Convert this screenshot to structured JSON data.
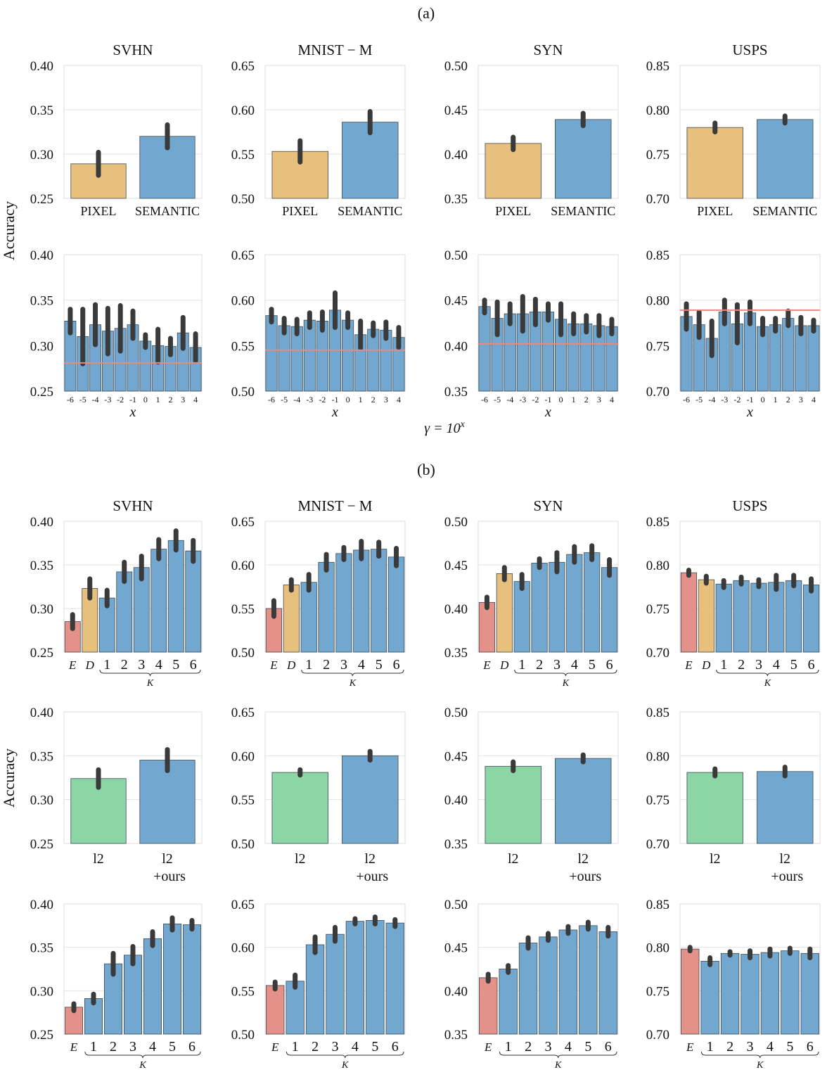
{
  "figure": {
    "label_a": "(a)",
    "label_b": "(b)",
    "ylabel": "Accuracy",
    "gamma_label_base": "γ = 10",
    "gamma_label_exp": "x",
    "colors": {
      "blue": "#72a8cf",
      "orange": "#e8c07e",
      "red": "#e4918a",
      "green": "#8cd5a5",
      "error": "#3a3a3a",
      "hline": "#e88a80"
    }
  },
  "chart_data": [
    {
      "panel": "a-top",
      "title": "SVHN",
      "type": "bar",
      "categories": [
        "PIXEL",
        "SEMANTIC"
      ],
      "values": [
        0.289,
        0.32
      ],
      "errors": [
        0.013,
        0.013
      ],
      "colors": [
        "orange",
        "blue"
      ],
      "ylim": [
        0.25,
        0.4
      ],
      "yticks": [
        "0.25",
        "0.30",
        "0.35",
        "0.40"
      ],
      "xlabel": ""
    },
    {
      "panel": "a-top",
      "title": "MNIST − M",
      "type": "bar",
      "categories": [
        "PIXEL",
        "SEMANTIC"
      ],
      "values": [
        0.553,
        0.586
      ],
      "errors": [
        0.012,
        0.012
      ],
      "colors": [
        "orange",
        "blue"
      ],
      "ylim": [
        0.5,
        0.65
      ],
      "yticks": [
        "0.50",
        "0.55",
        "0.60",
        "0.65"
      ],
      "xlabel": ""
    },
    {
      "panel": "a-top",
      "title": "SYN",
      "type": "bar",
      "categories": [
        "PIXEL",
        "SEMANTIC"
      ],
      "values": [
        0.412,
        0.439
      ],
      "errors": [
        0.007,
        0.007
      ],
      "colors": [
        "orange",
        "blue"
      ],
      "ylim": [
        0.35,
        0.5
      ],
      "yticks": [
        "0.35",
        "0.40",
        "0.45",
        "0.50"
      ],
      "xlabel": ""
    },
    {
      "panel": "a-top",
      "title": "USPS",
      "type": "bar",
      "categories": [
        "PIXEL",
        "SEMANTIC"
      ],
      "values": [
        0.78,
        0.789
      ],
      "errors": [
        0.005,
        0.004
      ],
      "colors": [
        "orange",
        "blue"
      ],
      "ylim": [
        0.7,
        0.85
      ],
      "yticks": [
        "0.70",
        "0.75",
        "0.80",
        "0.85"
      ],
      "xlabel": ""
    },
    {
      "panel": "a-bottom",
      "title": "",
      "type": "bar",
      "categories": [
        "-6",
        "-5",
        "-4",
        "-3",
        "-2",
        "-1",
        "0",
        "1",
        "2",
        "3",
        "4"
      ],
      "values": [
        0.327,
        0.31,
        0.323,
        0.316,
        0.319,
        0.323,
        0.305,
        0.3,
        0.299,
        0.314,
        0.298
      ],
      "errors": [
        0.013,
        0.03,
        0.022,
        0.025,
        0.025,
        0.015,
        0.007,
        0.018,
        0.009,
        0.017,
        0.015
      ],
      "colors": [
        "blue",
        "blue",
        "blue",
        "blue",
        "blue",
        "blue",
        "blue",
        "blue",
        "blue",
        "blue",
        "blue"
      ],
      "hline": 0.281,
      "ylim": [
        0.25,
        0.4
      ],
      "yticks": [
        "0.25",
        "0.30",
        "0.35",
        "0.40"
      ],
      "xlabel": "x"
    },
    {
      "panel": "a-bottom",
      "title": "",
      "type": "bar",
      "categories": [
        "-6",
        "-5",
        "-4",
        "-3",
        "-2",
        "-1",
        "0",
        "1",
        "2",
        "3",
        "4"
      ],
      "values": [
        0.583,
        0.572,
        0.571,
        0.578,
        0.577,
        0.589,
        0.578,
        0.562,
        0.568,
        0.567,
        0.559
      ],
      "errors": [
        0.007,
        0.008,
        0.008,
        0.008,
        0.01,
        0.019,
        0.008,
        0.015,
        0.007,
        0.009,
        0.011
      ],
      "colors": [
        "blue",
        "blue",
        "blue",
        "blue",
        "blue",
        "blue",
        "blue",
        "blue",
        "blue",
        "blue",
        "blue"
      ],
      "hline": 0.545,
      "ylim": [
        0.5,
        0.65
      ],
      "yticks": [
        "0.50",
        "0.55",
        "0.60",
        "0.65"
      ],
      "xlabel": "x"
    },
    {
      "panel": "a-bottom",
      "title": "",
      "type": "bar",
      "categories": [
        "-6",
        "-5",
        "-4",
        "-3",
        "-2",
        "-1",
        "0",
        "1",
        "2",
        "3",
        "4"
      ],
      "values": [
        0.443,
        0.43,
        0.435,
        0.435,
        0.437,
        0.437,
        0.429,
        0.424,
        0.424,
        0.422,
        0.421
      ],
      "errors": [
        0.007,
        0.018,
        0.011,
        0.019,
        0.014,
        0.009,
        0.017,
        0.011,
        0.009,
        0.011,
        0.008
      ],
      "colors": [
        "blue",
        "blue",
        "blue",
        "blue",
        "blue",
        "blue",
        "blue",
        "blue",
        "blue",
        "blue",
        "blue"
      ],
      "hline": 0.402,
      "ylim": [
        0.35,
        0.5
      ],
      "yticks": [
        "0.35",
        "0.40",
        "0.45",
        "0.50"
      ],
      "xlabel": "x"
    },
    {
      "panel": "a-bottom",
      "title": "",
      "type": "bar",
      "categories": [
        "-6",
        "-5",
        "-4",
        "-3",
        "-2",
        "-1",
        "0",
        "1",
        "2",
        "3",
        "4"
      ],
      "values": [
        0.782,
        0.773,
        0.758,
        0.787,
        0.774,
        0.786,
        0.771,
        0.773,
        0.78,
        0.772,
        0.772
      ],
      "errors": [
        0.014,
        0.014,
        0.019,
        0.013,
        0.021,
        0.012,
        0.009,
        0.007,
        0.008,
        0.009,
        0.006
      ],
      "colors": [
        "blue",
        "blue",
        "blue",
        "blue",
        "blue",
        "blue",
        "blue",
        "blue",
        "blue",
        "blue",
        "blue"
      ],
      "hline": 0.789,
      "ylim": [
        0.7,
        0.85
      ],
      "yticks": [
        "0.70",
        "0.75",
        "0.80",
        "0.85"
      ],
      "xlabel": "x"
    },
    {
      "panel": "b-1",
      "title": "SVHN",
      "type": "bar",
      "categories": [
        "E",
        "D",
        "1",
        "2",
        "3",
        "4",
        "5",
        "6"
      ],
      "values": [
        0.285,
        0.323,
        0.312,
        0.342,
        0.347,
        0.368,
        0.378,
        0.366
      ],
      "errors": [
        0.008,
        0.011,
        0.009,
        0.011,
        0.013,
        0.011,
        0.011,
        0.012
      ],
      "colors": [
        "red",
        "orange",
        "blue",
        "blue",
        "blue",
        "blue",
        "blue",
        "blue"
      ],
      "ylim": [
        0.25,
        0.4
      ],
      "yticks": [
        "0.25",
        "0.30",
        "0.35",
        "0.40"
      ],
      "xlabel": "K"
    },
    {
      "panel": "b-1",
      "title": "MNIST − M",
      "type": "bar",
      "categories": [
        "E",
        "D",
        "1",
        "2",
        "3",
        "4",
        "5",
        "6"
      ],
      "values": [
        0.55,
        0.577,
        0.58,
        0.603,
        0.613,
        0.617,
        0.618,
        0.609
      ],
      "errors": [
        0.009,
        0.006,
        0.009,
        0.009,
        0.007,
        0.01,
        0.008,
        0.01
      ],
      "colors": [
        "red",
        "orange",
        "blue",
        "blue",
        "blue",
        "blue",
        "blue",
        "blue"
      ],
      "ylim": [
        0.5,
        0.65
      ],
      "yticks": [
        "0.50",
        "0.55",
        "0.60",
        "0.65"
      ],
      "xlabel": "K"
    },
    {
      "panel": "b-1",
      "title": "SYN",
      "type": "bar",
      "categories": [
        "E",
        "D",
        "1",
        "2",
        "3",
        "4",
        "5",
        "6"
      ],
      "values": [
        0.407,
        0.44,
        0.431,
        0.452,
        0.453,
        0.462,
        0.464,
        0.447
      ],
      "errors": [
        0.006,
        0.007,
        0.008,
        0.005,
        0.011,
        0.009,
        0.008,
        0.009
      ],
      "colors": [
        "red",
        "orange",
        "blue",
        "blue",
        "blue",
        "blue",
        "blue",
        "blue"
      ],
      "ylim": [
        0.35,
        0.5
      ],
      "yticks": [
        "0.35",
        "0.40",
        "0.45",
        "0.50"
      ],
      "xlabel": "K"
    },
    {
      "panel": "b-1",
      "title": "USPS",
      "type": "bar",
      "categories": [
        "E",
        "D",
        "1",
        "2",
        "3",
        "4",
        "5",
        "6"
      ],
      "values": [
        0.791,
        0.783,
        0.778,
        0.782,
        0.779,
        0.78,
        0.782,
        0.777
      ],
      "errors": [
        0.003,
        0.004,
        0.004,
        0.004,
        0.004,
        0.008,
        0.006,
        0.007
      ],
      "colors": [
        "red",
        "orange",
        "blue",
        "blue",
        "blue",
        "blue",
        "blue",
        "blue"
      ],
      "ylim": [
        0.7,
        0.85
      ],
      "yticks": [
        "0.70",
        "0.75",
        "0.80",
        "0.85"
      ],
      "xlabel": "K"
    },
    {
      "panel": "b-2",
      "title": "",
      "type": "bar",
      "categories": [
        "l2",
        "l2\n+ours"
      ],
      "values": [
        0.324,
        0.345
      ],
      "errors": [
        0.01,
        0.012
      ],
      "colors": [
        "green",
        "blue"
      ],
      "ylim": [
        0.25,
        0.4
      ],
      "yticks": [
        "0.25",
        "0.30",
        "0.35",
        "0.40"
      ],
      "xlabel": ""
    },
    {
      "panel": "b-2",
      "title": "",
      "type": "bar",
      "categories": [
        "l2",
        "l2\n+ours"
      ],
      "values": [
        0.581,
        0.6
      ],
      "errors": [
        0.003,
        0.005
      ],
      "colors": [
        "green",
        "blue"
      ],
      "ylim": [
        0.5,
        0.65
      ],
      "yticks": [
        "0.50",
        "0.55",
        "0.60",
        "0.65"
      ],
      "xlabel": ""
    },
    {
      "panel": "b-2",
      "title": "",
      "type": "bar",
      "categories": [
        "l2",
        "l2\n+ours"
      ],
      "values": [
        0.438,
        0.447
      ],
      "errors": [
        0.005,
        0.004
      ],
      "colors": [
        "green",
        "blue"
      ],
      "ylim": [
        0.35,
        0.5
      ],
      "yticks": [
        "0.35",
        "0.40",
        "0.45",
        "0.50"
      ],
      "xlabel": ""
    },
    {
      "panel": "b-2",
      "title": "",
      "type": "bar",
      "categories": [
        "l2",
        "l2\n+ours"
      ],
      "values": [
        0.781,
        0.782
      ],
      "errors": [
        0.004,
        0.005
      ],
      "colors": [
        "green",
        "blue"
      ],
      "ylim": [
        0.7,
        0.85
      ],
      "yticks": [
        "0.70",
        "0.75",
        "0.80",
        "0.85"
      ],
      "xlabel": ""
    },
    {
      "panel": "b-3",
      "title": "",
      "type": "bar",
      "categories": [
        "E",
        "1",
        "2",
        "3",
        "4",
        "5",
        "6"
      ],
      "values": [
        0.281,
        0.291,
        0.331,
        0.341,
        0.36,
        0.377,
        0.376
      ],
      "errors": [
        0.004,
        0.005,
        0.012,
        0.01,
        0.008,
        0.007,
        0.005
      ],
      "colors": [
        "red",
        "blue",
        "blue",
        "blue",
        "blue",
        "blue",
        "blue"
      ],
      "ylim": [
        0.25,
        0.4
      ],
      "yticks": [
        "0.25",
        "0.30",
        "0.35",
        "0.40"
      ],
      "xlabel": "K"
    },
    {
      "panel": "b-3",
      "title": "",
      "type": "bar",
      "categories": [
        "E",
        "1",
        "2",
        "3",
        "4",
        "5",
        "6"
      ],
      "values": [
        0.556,
        0.561,
        0.603,
        0.615,
        0.63,
        0.631,
        0.628
      ],
      "errors": [
        0.004,
        0.007,
        0.009,
        0.008,
        0.003,
        0.004,
        0.004
      ],
      "colors": [
        "red",
        "blue",
        "blue",
        "blue",
        "blue",
        "blue",
        "blue"
      ],
      "ylim": [
        0.5,
        0.65
      ],
      "yticks": [
        "0.50",
        "0.55",
        "0.60",
        "0.65"
      ],
      "xlabel": "K"
    },
    {
      "panel": "b-3",
      "title": "",
      "type": "bar",
      "categories": [
        "E",
        "1",
        "2",
        "3",
        "4",
        "5",
        "6"
      ],
      "values": [
        0.415,
        0.425,
        0.455,
        0.462,
        0.47,
        0.475,
        0.468
      ],
      "errors": [
        0.004,
        0.004,
        0.006,
        0.004,
        0.004,
        0.004,
        0.005
      ],
      "colors": [
        "red",
        "blue",
        "blue",
        "blue",
        "blue",
        "blue",
        "blue"
      ],
      "ylim": [
        0.35,
        0.5
      ],
      "yticks": [
        "0.35",
        "0.40",
        "0.45",
        "0.50"
      ],
      "xlabel": "K"
    },
    {
      "panel": "b-3",
      "title": "",
      "type": "bar",
      "categories": [
        "E",
        "1",
        "2",
        "3",
        "4",
        "5",
        "6"
      ],
      "values": [
        0.798,
        0.784,
        0.793,
        0.792,
        0.794,
        0.796,
        0.793
      ],
      "errors": [
        0.002,
        0.004,
        0.002,
        0.004,
        0.004,
        0.003,
        0.005
      ],
      "colors": [
        "red",
        "blue",
        "blue",
        "blue",
        "blue",
        "blue",
        "blue"
      ],
      "ylim": [
        0.7,
        0.85
      ],
      "yticks": [
        "0.70",
        "0.75",
        "0.80",
        "0.85"
      ],
      "xlabel": "K"
    }
  ]
}
